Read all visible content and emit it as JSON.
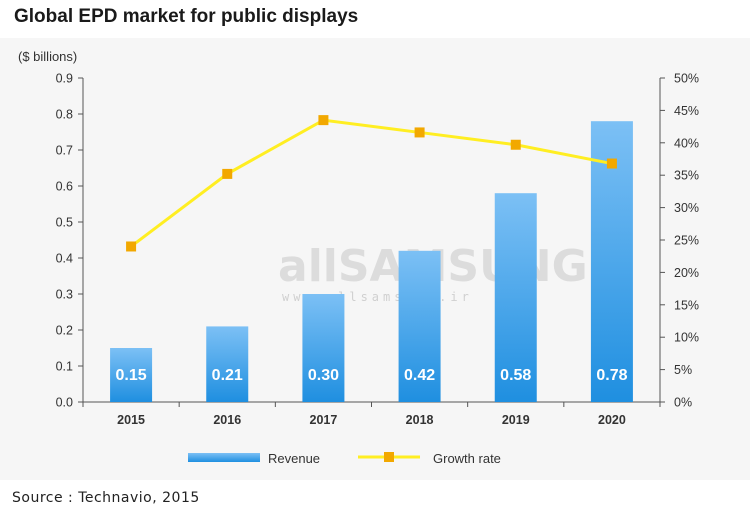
{
  "title": "Global EPD market for public displays",
  "source": "Source : Technavio, 2015",
  "watermark": {
    "brand": "allSAMSUNG",
    "url": "www.allsamsung.ir"
  },
  "colors": {
    "bar_top": "#7cc0f5",
    "bar_bottom": "#1f8fe0",
    "line": "#ffee22",
    "marker": "#f2a800",
    "axis": "#555555"
  },
  "chart_data": {
    "type": "bar",
    "categories": [
      "2015",
      "2016",
      "2017",
      "2018",
      "2019",
      "2020"
    ],
    "series": [
      {
        "name": "Revenue",
        "type": "bar",
        "axis": "left",
        "values": [
          0.15,
          0.21,
          0.3,
          0.42,
          0.58,
          0.78
        ]
      },
      {
        "name": "Growth rate",
        "type": "line",
        "axis": "right",
        "values": [
          0.24,
          0.352,
          0.435,
          0.416,
          0.397,
          0.368
        ]
      }
    ],
    "data_labels": [
      "0.15",
      "0.21",
      "0.30",
      "0.42",
      "0.58",
      "0.78"
    ],
    "ylabel": "($ billions)",
    "ylim": [
      0,
      0.9
    ],
    "yticks": [
      "0.0",
      "0.1",
      "0.2",
      "0.3",
      "0.4",
      "0.5",
      "0.6",
      "0.7",
      "0.8",
      "0.9"
    ],
    "y2lim": [
      0,
      0.5
    ],
    "y2ticks": [
      "0%",
      "5%",
      "10%",
      "15%",
      "20%",
      "25%",
      "30%",
      "35%",
      "40%",
      "45%",
      "50%"
    ],
    "legend_position": "bottom",
    "grid": false
  }
}
